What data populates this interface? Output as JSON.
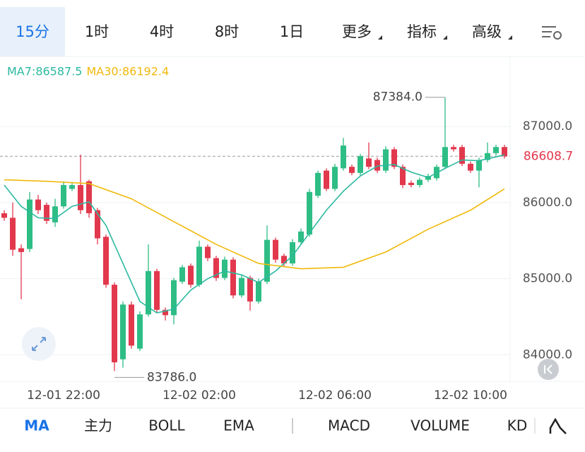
{
  "tabs": [
    "15分",
    "1时",
    "4时",
    "8时",
    "1日",
    "更多",
    "指标",
    "高级"
  ],
  "indicator_tabs": [
    "MA",
    "主力",
    "BOLL",
    "EMA",
    "MACD",
    "VOLUME",
    "KD"
  ],
  "chart_data": {
    "type": "candlestick",
    "categories": [
      null,
      null,
      null,
      null,
      null,
      null,
      null,
      "12-01 22:00",
      null,
      null,
      null,
      null,
      null,
      null,
      null,
      null,
      null,
      null,
      null,
      null,
      null,
      null,
      null,
      "12-02 02:00",
      null,
      null,
      null,
      null,
      null,
      null,
      null,
      null,
      null,
      null,
      null,
      null,
      null,
      null,
      null,
      "12-02 06:00",
      null,
      null,
      null,
      null,
      null,
      null,
      null,
      null,
      null,
      null,
      null,
      null,
      null,
      null,
      null,
      "12-02 10:00",
      null,
      null,
      null,
      null
    ],
    "open": [
      85860,
      85800,
      85400,
      85390,
      86040,
      85970,
      85740,
      85950,
      86180,
      86230,
      86280,
      85900,
      85550,
      84920,
      83940,
      84660,
      84080,
      84530,
      85100,
      84590,
      84520,
      84960,
      85170,
      84920,
      85420,
      85270,
      85010,
      85250,
      84780,
      85010,
      84700,
      84960,
      85510,
      85300,
      85200,
      85480,
      85580,
      86090,
      86420,
      86180,
      86450,
      86470,
      86390,
      86580,
      86560,
      86420,
      86700,
      86470,
      86260,
      86230,
      86300,
      86320,
      86470,
      86730,
      86730,
      86510,
      86420,
      86560,
      86650,
      86730
    ],
    "high": [
      85900,
      86000,
      85450,
      86140,
      86100,
      86000,
      86050,
      86280,
      86260,
      86630,
      86300,
      85930,
      85580,
      84950,
      84700,
      84700,
      84570,
      85450,
      85130,
      84620,
      85010,
      85180,
      85200,
      85500,
      85450,
      85300,
      85290,
      85280,
      85050,
      85040,
      85000,
      85700,
      85540,
      85330,
      85520,
      85660,
      86180,
      86420,
      86450,
      86510,
      86850,
      86500,
      86640,
      86790,
      86590,
      86740,
      86730,
      86500,
      86290,
      86330,
      86380,
      86500,
      87384,
      86760,
      86760,
      86540,
      86590,
      86790,
      86760,
      86760
    ],
    "low": [
      85760,
      85300,
      84730,
      85350,
      85850,
      85720,
      85680,
      85920,
      86150,
      85850,
      85800,
      85450,
      84880,
      83786,
      83830,
      84080,
      84050,
      84500,
      84550,
      84450,
      84400,
      84930,
      84880,
      84890,
      85230,
      84970,
      84980,
      84740,
      84750,
      84580,
      84670,
      84930,
      85210,
      85160,
      85170,
      85450,
      85550,
      86060,
      86150,
      86150,
      86420,
      86360,
      86360,
      86440,
      86390,
      86390,
      86440,
      86190,
      86200,
      86200,
      86270,
      86290,
      86440,
      86670,
      86480,
      86390,
      86200,
      86530,
      86620,
      86580
    ],
    "close": [
      85800,
      85380,
      85350,
      86040,
      85900,
      85760,
      85950,
      86230,
      86230,
      85900,
      85860,
      85530,
      84920,
      83900,
      84660,
      84120,
      84530,
      85100,
      84590,
      84520,
      84980,
      85150,
      84920,
      85420,
      85270,
      85010,
      85250,
      84780,
      85010,
      84700,
      84960,
      85510,
      85250,
      85200,
      85480,
      85620,
      86140,
      86390,
      86180,
      86470,
      86750,
      86390,
      86610,
      86470,
      86420,
      86700,
      86470,
      86230,
      86230,
      86300,
      86350,
      86470,
      86730,
      86700,
      86510,
      86420,
      86560,
      86650,
      86730,
      86608.7
    ],
    "up_color": "#2ebd85",
    "down_color": "#e2384d",
    "ma_lines": [
      {
        "name": "MA7:86587.5",
        "color": "#2bb9a0",
        "x": [
          0,
          2,
          4,
          6,
          8,
          10,
          12,
          14,
          16,
          18,
          20,
          22,
          24,
          26,
          28,
          30,
          32,
          34,
          36,
          38,
          40,
          42,
          44,
          46,
          48,
          50,
          52,
          54,
          56,
          58,
          59
        ],
        "values": [
          86230,
          85950,
          85800,
          85790,
          85950,
          86010,
          85700,
          85200,
          84700,
          84550,
          84600,
          84850,
          85000,
          85100,
          85050,
          84950,
          85100,
          85300,
          85600,
          85900,
          86150,
          86350,
          86480,
          86500,
          86400,
          86330,
          86450,
          86560,
          86550,
          86600,
          86630
        ]
      },
      {
        "name": "MA30:86192.4",
        "color": "#f0b90b",
        "x": [
          0,
          5,
          10,
          15,
          20,
          25,
          30,
          35,
          40,
          45,
          50,
          55,
          59
        ],
        "values": [
          86300,
          86280,
          86250,
          86050,
          85750,
          85450,
          85200,
          85130,
          85150,
          85350,
          85650,
          85900,
          86180
        ]
      }
    ],
    "ylim": [
      83650,
      87920
    ],
    "yticks": [
      {
        "value": 84000,
        "label": "84000.0"
      },
      {
        "value": 85000,
        "label": "85000.0"
      },
      {
        "value": 86000,
        "label": "86000.0"
      },
      {
        "value": 87000,
        "label": "87000.0"
      }
    ],
    "grid": true,
    "last_price": 86608.7,
    "high_marker": {
      "value": 87384,
      "label": "87384.0"
    },
    "low_marker": {
      "value": 83786,
      "label": "83786.0"
    }
  }
}
